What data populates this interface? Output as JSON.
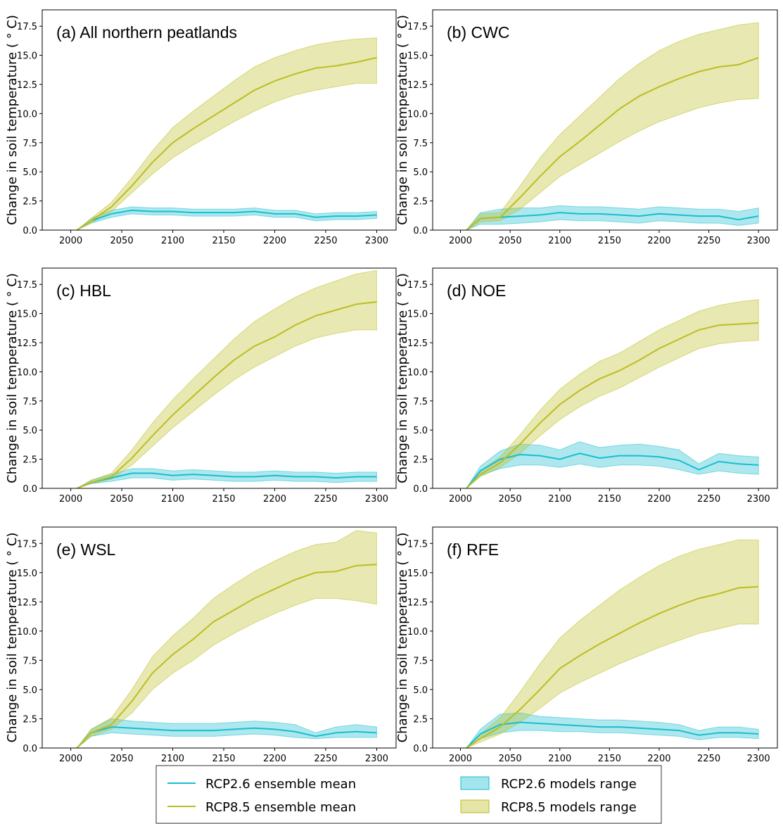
{
  "chart_data": [
    {
      "type": "line",
      "title": "(a) All northern peatlands",
      "ylabel": "Change in soil temperature ( ° C)",
      "x": [
        2006,
        2020,
        2040,
        2060,
        2080,
        2100,
        2120,
        2140,
        2160,
        2180,
        2200,
        2220,
        2240,
        2260,
        2280,
        2300
      ],
      "xlim": [
        1972,
        2319
      ],
      "ylim": [
        0,
        18.9
      ],
      "xticks": [
        2000,
        2050,
        2100,
        2150,
        2200,
        2250,
        2300
      ],
      "yticks": [
        {
          "value": 0,
          "label": "0.0"
        },
        2.5,
        {
          "value": 5,
          "label": "5.0"
        },
        7.5,
        {
          "value": 10,
          "label": "10.0"
        },
        12.5,
        {
          "value": 15,
          "label": "15.0"
        },
        17.5
      ],
      "series": [
        {
          "name": "RCP2.6 ensemble mean",
          "color": "#17becf",
          "values": [
            0,
            0.8,
            1.4,
            1.7,
            1.6,
            1.6,
            1.5,
            1.5,
            1.5,
            1.6,
            1.4,
            1.4,
            1.1,
            1.2,
            1.2,
            1.3
          ]
        },
        {
          "name": "RCP8.5 ensemble mean",
          "color": "#bcbd22",
          "values": [
            0,
            0.8,
            2.0,
            3.8,
            5.8,
            7.5,
            8.7,
            9.8,
            10.9,
            12.0,
            12.8,
            13.4,
            13.9,
            14.1,
            14.4,
            14.8
          ]
        }
      ],
      "bands": [
        {
          "name": "RCP2.6 models range",
          "color": "#17becf",
          "lower": [
            0,
            0.6,
            1.1,
            1.4,
            1.3,
            1.3,
            1.2,
            1.2,
            1.2,
            1.3,
            1.1,
            1.1,
            0.8,
            0.9,
            0.9,
            1.0
          ],
          "upper": [
            0,
            1.0,
            1.7,
            2.0,
            1.9,
            1.9,
            1.8,
            1.8,
            1.8,
            1.9,
            1.7,
            1.7,
            1.4,
            1.5,
            1.5,
            1.6
          ]
        },
        {
          "name": "RCP8.5 models range",
          "color": "#bcbd22",
          "lower": [
            0,
            0.6,
            1.6,
            3.2,
            4.8,
            6.2,
            7.3,
            8.3,
            9.3,
            10.2,
            11.0,
            11.6,
            12.0,
            12.3,
            12.6,
            12.6
          ],
          "upper": [
            0,
            1.0,
            2.4,
            4.5,
            6.8,
            8.8,
            10.2,
            11.5,
            12.8,
            14.0,
            14.8,
            15.4,
            15.9,
            16.2,
            16.4,
            16.5
          ]
        }
      ]
    },
    {
      "type": "line",
      "title": "(b) CWC",
      "ylabel": "Change in soil temperature ( ° C)",
      "x": [
        2006,
        2020,
        2040,
        2060,
        2080,
        2100,
        2120,
        2140,
        2160,
        2180,
        2200,
        2220,
        2240,
        2260,
        2280,
        2300
      ],
      "xlim": [
        1972,
        2319
      ],
      "ylim": [
        0,
        18.9
      ],
      "xticks": [
        2000,
        2050,
        2100,
        2150,
        2200,
        2250,
        2300
      ],
      "yticks": [
        {
          "value": 0,
          "label": "0.0"
        },
        2.5,
        {
          "value": 5,
          "label": "5.0"
        },
        7.5,
        {
          "value": 10,
          "label": "10.0"
        },
        12.5,
        {
          "value": 15,
          "label": "15.0"
        },
        17.5
      ],
      "series": [
        {
          "color": "#17becf",
          "values": [
            0,
            1.0,
            1.1,
            1.2,
            1.3,
            1.5,
            1.4,
            1.4,
            1.3,
            1.2,
            1.4,
            1.3,
            1.2,
            1.2,
            0.9,
            1.2
          ]
        },
        {
          "color": "#bcbd22",
          "values": [
            0,
            1.0,
            1.1,
            2.8,
            4.6,
            6.3,
            7.6,
            9.0,
            10.4,
            11.5,
            12.3,
            13.0,
            13.6,
            14.0,
            14.2,
            14.8
          ]
        }
      ],
      "bands": [
        {
          "color": "#17becf",
          "lower": [
            0,
            0.5,
            0.5,
            0.6,
            0.7,
            0.9,
            0.8,
            0.8,
            0.7,
            0.6,
            0.8,
            0.7,
            0.6,
            0.6,
            0.4,
            0.6
          ],
          "upper": [
            0,
            1.5,
            1.8,
            1.9,
            1.9,
            2.1,
            2.0,
            2.0,
            1.9,
            1.8,
            2.0,
            1.9,
            1.8,
            1.8,
            1.6,
            1.9
          ]
        },
        {
          "color": "#bcbd22",
          "lower": [
            0,
            0.7,
            0.8,
            1.8,
            3.2,
            4.6,
            5.6,
            6.6,
            7.6,
            8.5,
            9.3,
            9.9,
            10.5,
            10.9,
            11.2,
            11.3
          ],
          "upper": [
            0,
            1.4,
            1.5,
            3.8,
            6.2,
            8.2,
            9.8,
            11.4,
            13.0,
            14.3,
            15.4,
            16.2,
            16.8,
            17.2,
            17.6,
            17.8
          ]
        }
      ]
    },
    {
      "type": "line",
      "title": "(c) HBL",
      "ylabel": "Change in soil temperature ( ° C)",
      "x": [
        2006,
        2020,
        2040,
        2060,
        2080,
        2100,
        2120,
        2140,
        2160,
        2180,
        2200,
        2220,
        2240,
        2260,
        2280,
        2300
      ],
      "xlim": [
        1972,
        2319
      ],
      "ylim": [
        0,
        18.9
      ],
      "xticks": [
        2000,
        2050,
        2100,
        2150,
        2200,
        2250,
        2300
      ],
      "yticks": [
        {
          "value": 0,
          "label": "0.0"
        },
        2.5,
        {
          "value": 5,
          "label": "5.0"
        },
        7.5,
        {
          "value": 10,
          "label": "10.0"
        },
        12.5,
        {
          "value": 15,
          "label": "15.0"
        },
        17.5
      ],
      "series": [
        {
          "color": "#17becf",
          "values": [
            0,
            0.5,
            0.9,
            1.3,
            1.3,
            1.1,
            1.2,
            1.1,
            1.0,
            1.0,
            1.1,
            1.0,
            1.0,
            0.9,
            1.0,
            1.0
          ]
        },
        {
          "color": "#bcbd22",
          "values": [
            0,
            0.5,
            1.0,
            2.6,
            4.5,
            6.3,
            7.9,
            9.5,
            11.0,
            12.2,
            13.0,
            14.0,
            14.8,
            15.3,
            15.8,
            16.0
          ]
        }
      ],
      "bands": [
        {
          "color": "#17becf",
          "lower": [
            0,
            0.4,
            0.6,
            0.9,
            0.9,
            0.7,
            0.8,
            0.7,
            0.6,
            0.6,
            0.7,
            0.6,
            0.6,
            0.5,
            0.6,
            0.6
          ],
          "upper": [
            0,
            0.7,
            1.2,
            1.7,
            1.7,
            1.5,
            1.6,
            1.5,
            1.4,
            1.4,
            1.5,
            1.4,
            1.4,
            1.3,
            1.4,
            1.4
          ]
        },
        {
          "color": "#bcbd22",
          "lower": [
            0,
            0.4,
            0.8,
            2.0,
            3.6,
            5.2,
            6.6,
            8.0,
            9.3,
            10.4,
            11.3,
            12.2,
            12.9,
            13.3,
            13.6,
            13.6
          ],
          "upper": [
            0,
            0.7,
            1.3,
            3.3,
            5.6,
            7.6,
            9.4,
            11.1,
            12.8,
            14.3,
            15.4,
            16.4,
            17.2,
            17.8,
            18.4,
            18.7
          ]
        }
      ]
    },
    {
      "type": "line",
      "title": "(d) NOE",
      "ylabel": "Change in soil temperature ( ° C)",
      "x": [
        2006,
        2020,
        2040,
        2060,
        2080,
        2100,
        2120,
        2140,
        2160,
        2180,
        2200,
        2220,
        2240,
        2260,
        2280,
        2300
      ],
      "xlim": [
        1972,
        2319
      ],
      "ylim": [
        0,
        18.9
      ],
      "xticks": [
        2000,
        2050,
        2100,
        2150,
        2200,
        2250,
        2300
      ],
      "yticks": [
        {
          "value": 0,
          "label": "0.0"
        },
        2.5,
        {
          "value": 5,
          "label": "5.0"
        },
        7.5,
        {
          "value": 10,
          "label": "10.0"
        },
        12.5,
        {
          "value": 15,
          "label": "15.0"
        },
        17.5
      ],
      "series": [
        {
          "color": "#17becf",
          "values": [
            0,
            1.5,
            2.5,
            2.9,
            2.8,
            2.5,
            3.0,
            2.6,
            2.8,
            2.8,
            2.7,
            2.4,
            1.6,
            2.3,
            2.1,
            2.0
          ]
        },
        {
          "color": "#bcbd22",
          "values": [
            0,
            1.2,
            2.2,
            3.8,
            5.6,
            7.2,
            8.4,
            9.4,
            10.1,
            11.0,
            12.0,
            12.8,
            13.6,
            14.0,
            14.1,
            14.2
          ]
        }
      ],
      "bands": [
        {
          "color": "#17becf",
          "lower": [
            0,
            1.1,
            1.7,
            2.0,
            2.0,
            1.8,
            2.1,
            1.8,
            2.0,
            2.0,
            1.9,
            1.6,
            1.2,
            1.5,
            1.3,
            1.2
          ],
          "upper": [
            0,
            1.9,
            3.2,
            3.8,
            3.7,
            3.3,
            4.0,
            3.5,
            3.7,
            3.8,
            3.6,
            3.3,
            2.1,
            3.0,
            2.8,
            2.7
          ]
        },
        {
          "color": "#bcbd22",
          "lower": [
            0,
            1.0,
            1.8,
            3.0,
            4.5,
            5.9,
            7.0,
            7.9,
            8.6,
            9.5,
            10.4,
            11.2,
            12.0,
            12.4,
            12.6,
            12.7
          ],
          "upper": [
            0,
            1.5,
            2.7,
            4.6,
            6.7,
            8.5,
            9.8,
            10.9,
            11.6,
            12.6,
            13.6,
            14.4,
            15.2,
            15.7,
            16.0,
            16.2
          ]
        }
      ]
    },
    {
      "type": "line",
      "title": "(e) WSL",
      "ylabel": "Change in soil temperature ( ° C)",
      "x": [
        2006,
        2020,
        2040,
        2060,
        2080,
        2100,
        2120,
        2140,
        2160,
        2180,
        2200,
        2220,
        2240,
        2260,
        2280,
        2300
      ],
      "xlim": [
        1972,
        2319
      ],
      "ylim": [
        0,
        18.9
      ],
      "xticks": [
        2000,
        2050,
        2100,
        2150,
        2200,
        2250,
        2300
      ],
      "yticks": [
        {
          "value": 0,
          "label": "0.0"
        },
        2.5,
        {
          "value": 5,
          "label": "5.0"
        },
        7.5,
        {
          "value": 10,
          "label": "10.0"
        },
        12.5,
        {
          "value": 15,
          "label": "15.0"
        },
        17.5
      ],
      "series": [
        {
          "color": "#17becf",
          "values": [
            0,
            1.3,
            1.8,
            1.7,
            1.6,
            1.5,
            1.5,
            1.5,
            1.6,
            1.7,
            1.6,
            1.4,
            1.0,
            1.3,
            1.4,
            1.3
          ]
        },
        {
          "color": "#bcbd22",
          "values": [
            0,
            1.3,
            2.0,
            4.0,
            6.4,
            8.0,
            9.3,
            10.8,
            11.8,
            12.8,
            13.6,
            14.4,
            15.0,
            15.1,
            15.6,
            15.7
          ]
        }
      ],
      "bands": [
        {
          "color": "#17becf",
          "lower": [
            0,
            1.0,
            1.3,
            1.2,
            1.1,
            1.0,
            1.0,
            1.0,
            1.1,
            1.2,
            1.1,
            0.9,
            0.8,
            0.9,
            0.9,
            0.9
          ],
          "upper": [
            0,
            1.6,
            2.5,
            2.3,
            2.2,
            2.1,
            2.1,
            2.1,
            2.2,
            2.3,
            2.2,
            2.0,
            1.3,
            1.8,
            2.0,
            1.8
          ]
        },
        {
          "color": "#bcbd22",
          "lower": [
            0,
            1.0,
            1.6,
            3.0,
            5.0,
            6.4,
            7.5,
            8.8,
            9.8,
            10.7,
            11.5,
            12.2,
            12.8,
            12.8,
            12.6,
            12.3
          ],
          "upper": [
            0,
            1.6,
            2.6,
            5.0,
            7.8,
            9.6,
            11.1,
            12.8,
            14.0,
            15.1,
            16.0,
            16.8,
            17.4,
            17.6,
            18.6,
            18.4
          ]
        }
      ]
    },
    {
      "type": "line",
      "title": "(f) RFE",
      "ylabel": "Change in soil temperature ( ° C)",
      "x": [
        2006,
        2020,
        2040,
        2060,
        2080,
        2100,
        2120,
        2140,
        2160,
        2180,
        2200,
        2220,
        2240,
        2260,
        2280,
        2300
      ],
      "xlim": [
        1972,
        2319
      ],
      "ylim": [
        0,
        18.9
      ],
      "xticks": [
        2000,
        2050,
        2100,
        2150,
        2200,
        2250,
        2300
      ],
      "yticks": [
        {
          "value": 0,
          "label": "0.0"
        },
        2.5,
        {
          "value": 5,
          "label": "5.0"
        },
        7.5,
        {
          "value": 10,
          "label": "10.0"
        },
        12.5,
        {
          "value": 15,
          "label": "15.0"
        },
        17.5
      ],
      "series": [
        {
          "color": "#17becf",
          "values": [
            0,
            1.2,
            2.0,
            2.2,
            2.1,
            2.0,
            1.9,
            1.8,
            1.8,
            1.7,
            1.6,
            1.5,
            1.1,
            1.3,
            1.3,
            1.2
          ]
        },
        {
          "color": "#bcbd22",
          "values": [
            0,
            0.8,
            1.8,
            3.3,
            5.0,
            6.8,
            7.9,
            8.9,
            9.8,
            10.7,
            11.5,
            12.2,
            12.8,
            13.2,
            13.7,
            13.8
          ]
        }
      ],
      "bands": [
        {
          "color": "#17becf",
          "lower": [
            0,
            0.8,
            1.3,
            1.5,
            1.5,
            1.4,
            1.4,
            1.3,
            1.3,
            1.2,
            1.1,
            1.0,
            0.7,
            0.9,
            0.9,
            0.8
          ],
          "upper": [
            0,
            1.6,
            2.9,
            3.0,
            2.7,
            2.6,
            2.5,
            2.4,
            2.4,
            2.3,
            2.2,
            2.0,
            1.5,
            1.8,
            1.8,
            1.6
          ]
        },
        {
          "color": "#bcbd22",
          "lower": [
            0,
            0.5,
            1.2,
            2.2,
            3.4,
            4.7,
            5.6,
            6.4,
            7.2,
            7.9,
            8.6,
            9.2,
            9.8,
            10.2,
            10.6,
            10.6
          ],
          "upper": [
            0,
            1.2,
            2.6,
            4.8,
            7.2,
            9.4,
            10.9,
            12.2,
            13.5,
            14.6,
            15.6,
            16.4,
            17.0,
            17.4,
            17.8,
            17.8
          ]
        }
      ]
    }
  ]
}
